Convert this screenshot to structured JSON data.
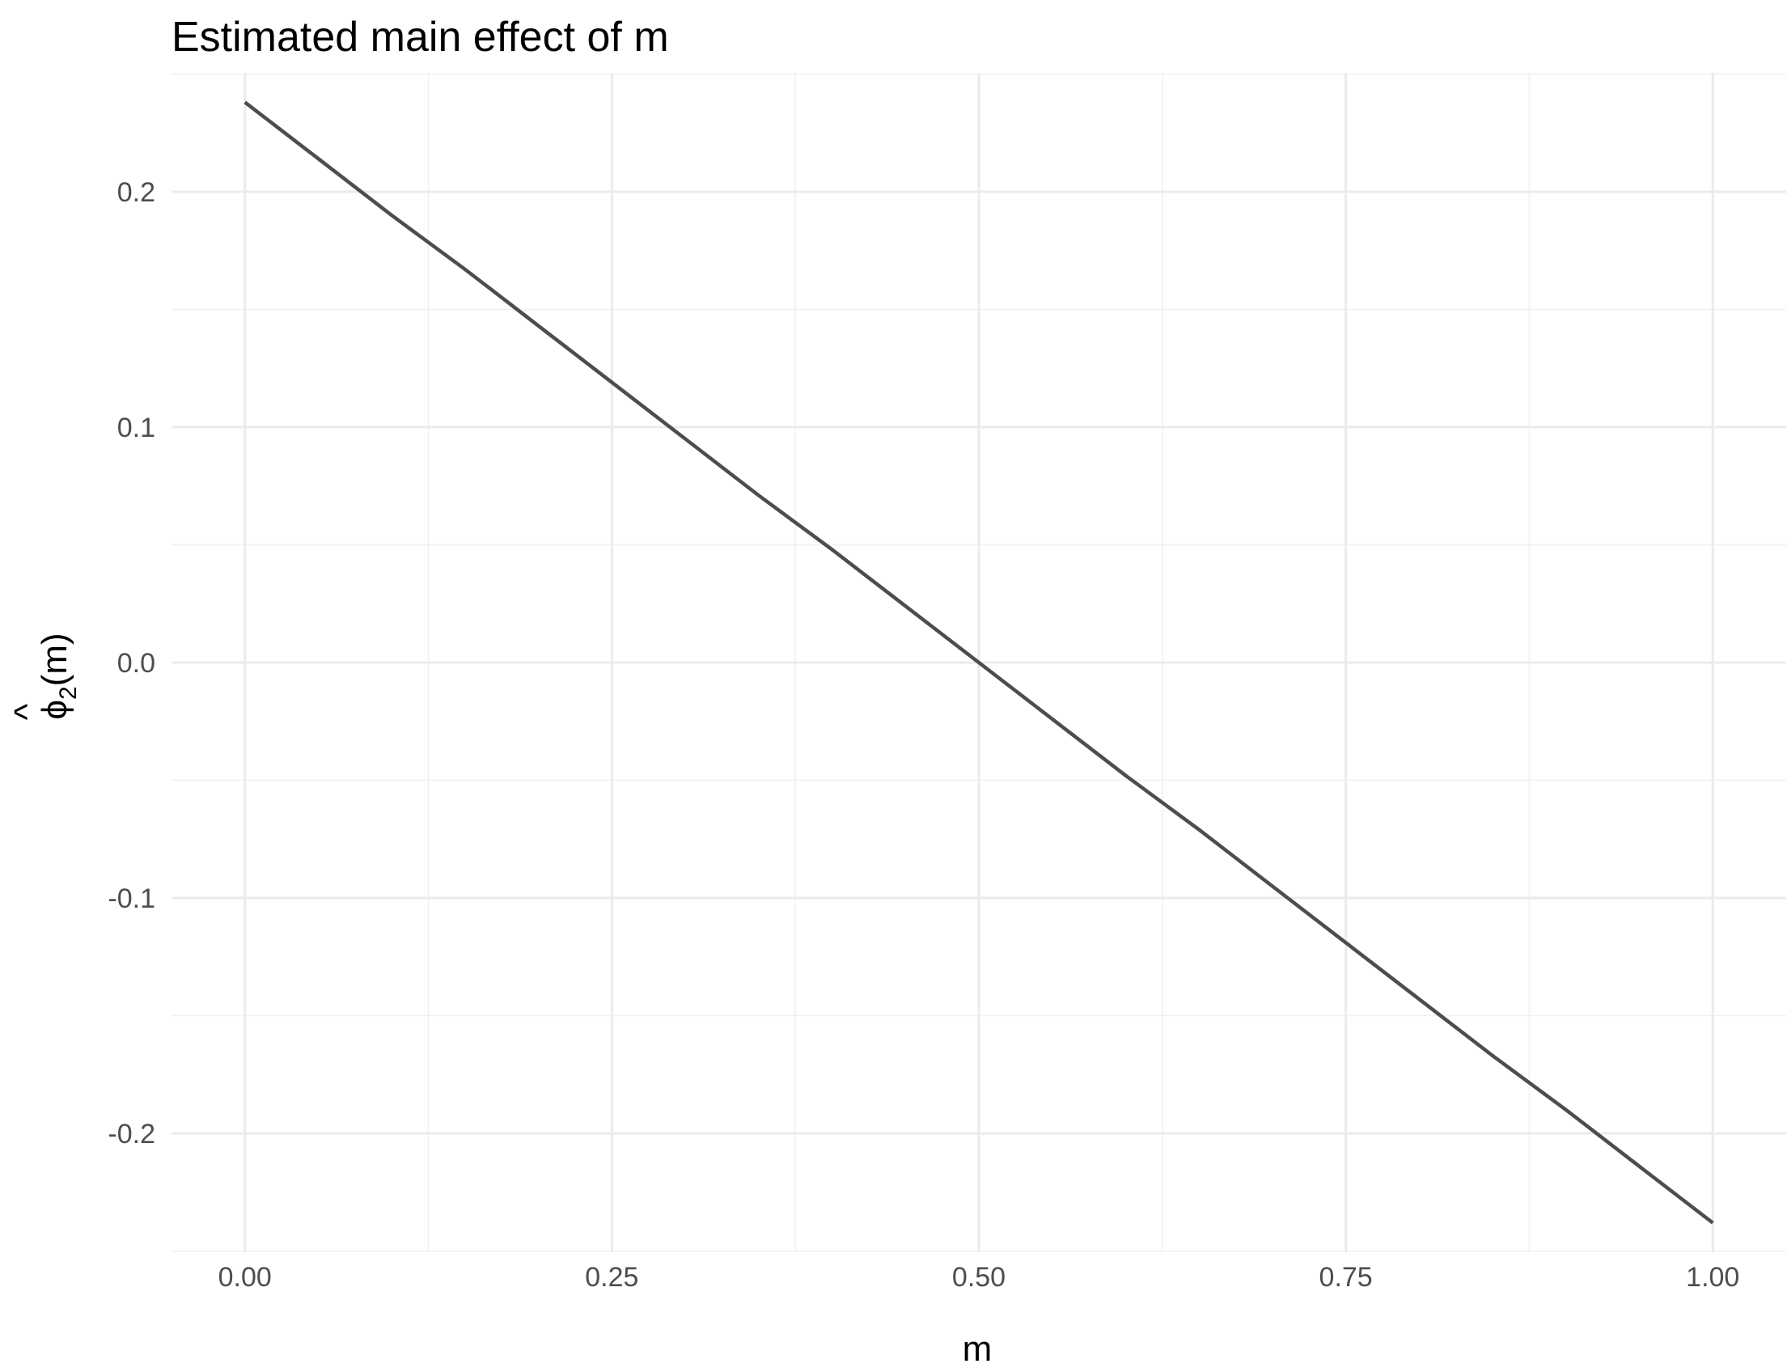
{
  "chart_data": {
    "type": "line",
    "title": "Estimated main effect of m",
    "xlabel": "m",
    "ylabel": {
      "accent": "^",
      "symbol": "ϕ",
      "subscript": "2",
      "argument": "(m)"
    },
    "xlim": [
      -0.05,
      1.05
    ],
    "ylim": [
      -0.2505,
      0.2505
    ],
    "x_ticks": [
      0.0,
      0.25,
      0.5,
      0.75,
      1.0
    ],
    "x_tick_labels": [
      "0.00",
      "0.25",
      "0.50",
      "0.75",
      "1.00"
    ],
    "y_ticks": [
      -0.2,
      -0.1,
      0.0,
      0.1,
      0.2
    ],
    "y_tick_labels": [
      "-0.2",
      "-0.1",
      "0.0",
      "0.1",
      "0.2"
    ],
    "grid": true,
    "series": [
      {
        "color": "#4d4d4d",
        "x": [
          0.0,
          0.05,
          0.1,
          0.15,
          0.2,
          0.25,
          0.3,
          0.35,
          0.4,
          0.45,
          0.5,
          0.55,
          0.6,
          0.65,
          0.7,
          0.75,
          0.8,
          0.85,
          0.9,
          0.95,
          1.0
        ],
        "y": [
          0.238,
          0.214,
          0.19,
          0.167,
          0.143,
          0.119,
          0.095,
          0.071,
          0.048,
          0.024,
          0.0,
          -0.024,
          -0.048,
          -0.071,
          -0.095,
          -0.119,
          -0.143,
          -0.167,
          -0.19,
          -0.214,
          -0.238
        ]
      }
    ]
  }
}
